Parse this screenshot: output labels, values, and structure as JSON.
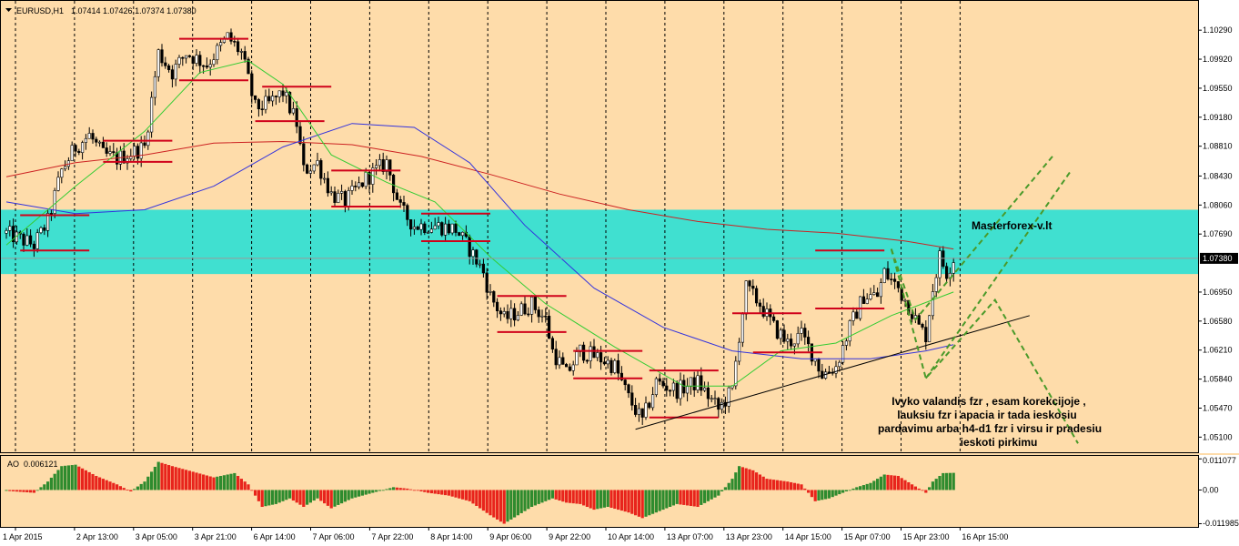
{
  "header": {
    "symbol": "EURUSD,H1",
    "ohlc": "1.07414 1.07426 1.07374 1.07380"
  },
  "annotations": {
    "brand": "Masterforex-v.lt",
    "comment_lines": [
      "Ivyko valandis fzr , esam korekcijoje ,",
      "lauksiu fzr i apacia ir tada ieskosiu",
      "pardavimu arba h4-d1 fzr i virsu ir pradesiu",
      "ieskoti pirkimu"
    ]
  },
  "colors": {
    "background": "#fedcaa",
    "bull_candle": "#ffffff",
    "bear_candle": "#000000",
    "zone": "#40e0d0",
    "level_lines": "#d0021b",
    "ma_fast": "#33cc33",
    "ma_slow": "#3333dd",
    "ma_long": "#cc2222",
    "ao_up": "#2e8b2e",
    "ao_down": "#e8241c",
    "projection": "#4a9a2a"
  },
  "chart_data": {
    "type": "candlestick",
    "symbol": "EURUSD",
    "timeframe": "H1",
    "price_ticks": [
      "1.10290",
      "1.09920",
      "1.09550",
      "1.09180",
      "1.08810",
      "1.08430",
      "1.08060",
      "1.07690",
      "1.07380",
      "1.06950",
      "1.06580",
      "1.06210",
      "1.05840",
      "1.05470",
      "1.05100"
    ],
    "current_price": "1.07380",
    "ylim": [
      1.0493,
      1.1064
    ],
    "x_ticks": [
      "1 Apr 2015",
      "2 Apr 13:00",
      "3 Apr 05:00",
      "3 Apr 21:00",
      "6 Apr 14:00",
      "7 Apr 06:00",
      "7 Apr 22:00",
      "8 Apr 14:00",
      "9 Apr 06:00",
      "9 Apr 22:00",
      "10 Apr 14:00",
      "13 Apr 07:00",
      "13 Apr 23:00",
      "14 Apr 15:00",
      "15 Apr 07:00",
      "15 Apr 23:00",
      "16 Apr 15:00"
    ],
    "anchors": [
      {
        "b": 0,
        "p": 1.077
      },
      {
        "b": 8,
        "p": 1.0755
      },
      {
        "b": 12,
        "p": 1.0785
      },
      {
        "b": 16,
        "p": 1.085
      },
      {
        "b": 20,
        "p": 1.088
      },
      {
        "b": 24,
        "p": 1.0895
      },
      {
        "b": 28,
        "p": 1.087
      },
      {
        "b": 32,
        "p": 1.0865
      },
      {
        "b": 40,
        "p": 1.088
      },
      {
        "b": 44,
        "p": 1.1
      },
      {
        "b": 48,
        "p": 1.0975
      },
      {
        "b": 52,
        "p": 1.1
      },
      {
        "b": 58,
        "p": 1.0985
      },
      {
        "b": 64,
        "p": 1.102
      },
      {
        "b": 68,
        "p": 1.1
      },
      {
        "b": 72,
        "p": 1.093
      },
      {
        "b": 76,
        "p": 1.0935
      },
      {
        "b": 80,
        "p": 1.095
      },
      {
        "b": 84,
        "p": 1.091
      },
      {
        "b": 86,
        "p": 1.085
      },
      {
        "b": 90,
        "p": 1.086
      },
      {
        "b": 94,
        "p": 1.082
      },
      {
        "b": 98,
        "p": 1.081
      },
      {
        "b": 104,
        "p": 1.084
      },
      {
        "b": 110,
        "p": 1.086
      },
      {
        "b": 114,
        "p": 1.08
      },
      {
        "b": 118,
        "p": 1.078
      },
      {
        "b": 124,
        "p": 1.078
      },
      {
        "b": 130,
        "p": 1.0775
      },
      {
        "b": 134,
        "p": 1.075
      },
      {
        "b": 138,
        "p": 1.072
      },
      {
        "b": 140,
        "p": 1.069
      },
      {
        "b": 144,
        "p": 1.066
      },
      {
        "b": 148,
        "p": 1.067
      },
      {
        "b": 152,
        "p": 1.068
      },
      {
        "b": 156,
        "p": 1.066
      },
      {
        "b": 158,
        "p": 1.062
      },
      {
        "b": 162,
        "p": 1.059
      },
      {
        "b": 166,
        "p": 1.062
      },
      {
        "b": 172,
        "p": 1.061
      },
      {
        "b": 176,
        "p": 1.06
      },
      {
        "b": 180,
        "p": 1.056
      },
      {
        "b": 184,
        "p": 1.053
      },
      {
        "b": 188,
        "p": 1.058
      },
      {
        "b": 194,
        "p": 1.057
      },
      {
        "b": 200,
        "p": 1.058
      },
      {
        "b": 206,
        "p": 1.0545
      },
      {
        "b": 210,
        "p": 1.057
      },
      {
        "b": 212,
        "p": 1.064
      },
      {
        "b": 214,
        "p": 1.07
      },
      {
        "b": 218,
        "p": 1.068
      },
      {
        "b": 222,
        "p": 1.065
      },
      {
        "b": 226,
        "p": 1.063
      },
      {
        "b": 230,
        "p": 1.064
      },
      {
        "b": 234,
        "p": 1.061
      },
      {
        "b": 236,
        "p": 1.059
      },
      {
        "b": 240,
        "p": 1.06
      },
      {
        "b": 244,
        "p": 1.065
      },
      {
        "b": 248,
        "p": 1.069
      },
      {
        "b": 252,
        "p": 1.069
      },
      {
        "b": 254,
        "p": 1.072
      },
      {
        "b": 258,
        "p": 1.07
      },
      {
        "b": 262,
        "p": 1.067
      },
      {
        "b": 264,
        "p": 1.065
      },
      {
        "b": 266,
        "p": 1.064
      },
      {
        "b": 268,
        "p": 1.07
      },
      {
        "b": 270,
        "p": 1.074
      },
      {
        "b": 272,
        "p": 1.072
      },
      {
        "b": 274,
        "p": 1.0738
      }
    ],
    "ma_fast": [
      [
        0,
        1.0755
      ],
      [
        20,
        1.083
      ],
      [
        40,
        1.09
      ],
      [
        56,
        1.0975
      ],
      [
        70,
        1.099
      ],
      [
        80,
        1.096
      ],
      [
        94,
        1.087
      ],
      [
        110,
        1.0835
      ],
      [
        124,
        1.081
      ],
      [
        140,
        1.074
      ],
      [
        156,
        1.068
      ],
      [
        176,
        1.0625
      ],
      [
        196,
        1.0575
      ],
      [
        210,
        1.0575
      ],
      [
        224,
        1.062
      ],
      [
        240,
        1.063
      ],
      [
        256,
        1.0665
      ],
      [
        274,
        1.0695
      ]
    ],
    "ma_slow": [
      [
        0,
        1.081
      ],
      [
        20,
        1.0795
      ],
      [
        40,
        1.08
      ],
      [
        60,
        1.083
      ],
      [
        80,
        1.088
      ],
      [
        100,
        1.091
      ],
      [
        118,
        1.0905
      ],
      [
        134,
        1.086
      ],
      [
        150,
        1.078
      ],
      [
        170,
        1.07
      ],
      [
        190,
        1.065
      ],
      [
        210,
        1.062
      ],
      [
        230,
        1.061
      ],
      [
        250,
        1.061
      ],
      [
        266,
        1.062
      ],
      [
        274,
        1.0628
      ]
    ],
    "ma_long": [
      [
        0,
        1.0842
      ],
      [
        20,
        1.086
      ],
      [
        40,
        1.087
      ],
      [
        60,
        1.0885
      ],
      [
        80,
        1.0887
      ],
      [
        100,
        1.0883
      ],
      [
        120,
        1.0868
      ],
      [
        140,
        1.0845
      ],
      [
        160,
        1.082
      ],
      [
        180,
        1.08
      ],
      [
        200,
        1.0785
      ],
      [
        220,
        1.0775
      ],
      [
        240,
        1.077
      ],
      [
        260,
        1.076
      ],
      [
        274,
        1.075
      ]
    ],
    "zone": [
      1.0718,
      1.08
    ],
    "levels": [
      {
        "b0": 4,
        "b1": 24,
        "p": 1.0748
      },
      {
        "b0": 4,
        "b1": 24,
        "p": 1.0793
      },
      {
        "b0": 28,
        "b1": 48,
        "p": 1.0888
      },
      {
        "b0": 28,
        "b1": 48,
        "p": 1.0861
      },
      {
        "b0": 50,
        "b1": 70,
        "p": 1.1018
      },
      {
        "b0": 50,
        "b1": 70,
        "p": 1.0965
      },
      {
        "b0": 74,
        "b1": 94,
        "p": 1.0957
      },
      {
        "b0": 72,
        "b1": 92,
        "p": 1.0913
      },
      {
        "b0": 94,
        "b1": 114,
        "p": 1.085
      },
      {
        "b0": 94,
        "b1": 114,
        "p": 1.0804
      },
      {
        "b0": 120,
        "b1": 140,
        "p": 1.0795
      },
      {
        "b0": 120,
        "b1": 140,
        "p": 1.076
      },
      {
        "b0": 142,
        "b1": 162,
        "p": 1.069
      },
      {
        "b0": 142,
        "b1": 162,
        "p": 1.0644
      },
      {
        "b0": 164,
        "b1": 184,
        "p": 1.062
      },
      {
        "b0": 164,
        "b1": 184,
        "p": 1.0585
      },
      {
        "b0": 186,
        "b1": 206,
        "p": 1.0595
      },
      {
        "b0": 186,
        "b1": 206,
        "p": 1.0535
      },
      {
        "b0": 210,
        "b1": 230,
        "p": 1.0668
      },
      {
        "b0": 216,
        "b1": 236,
        "p": 1.0618
      },
      {
        "b0": 234,
        "b1": 254,
        "p": 1.0748
      },
      {
        "b0": 234,
        "b1": 254,
        "p": 1.0674
      }
    ],
    "trendline": {
      "b0": 182,
      "p0": 1.052,
      "b1": 296,
      "p1": 1.0665
    },
    "projections": [
      [
        [
          256,
          1.075
        ],
        [
          263,
          1.066
        ],
        [
          303,
          1.087
        ]
      ],
      [
        [
          256,
          1.075
        ],
        [
          266,
          1.0585
        ],
        [
          286,
          1.0685
        ],
        [
          310,
          1.0502
        ]
      ],
      [
        [
          266,
          1.0585
        ],
        [
          308,
          1.085
        ]
      ]
    ],
    "ao": {
      "label": "AO",
      "value": "0.006121",
      "ticks": [
        "0.011077",
        "0.00",
        "-0.011985"
      ],
      "ylim": [
        -0.0128,
        0.0118
      ],
      "anchors": [
        [
          0,
          -0.0003
        ],
        [
          8,
          -0.001
        ],
        [
          12,
          0.003
        ],
        [
          16,
          0.0085
        ],
        [
          20,
          0.009
        ],
        [
          26,
          0.005
        ],
        [
          32,
          0.002
        ],
        [
          36,
          -0.0005
        ],
        [
          40,
          0.003
        ],
        [
          44,
          0.01
        ],
        [
          48,
          0.0085
        ],
        [
          54,
          0.0065
        ],
        [
          60,
          0.0045
        ],
        [
          66,
          0.006
        ],
        [
          70,
          0.002
        ],
        [
          74,
          -0.006
        ],
        [
          78,
          -0.005
        ],
        [
          82,
          -0.003
        ],
        [
          86,
          -0.006
        ],
        [
          90,
          -0.003
        ],
        [
          94,
          -0.0065
        ],
        [
          100,
          -0.003
        ],
        [
          106,
          -0.001
        ],
        [
          112,
          0.001
        ],
        [
          116,
          0.0005
        ],
        [
          122,
          -0.001
        ],
        [
          128,
          -0.002
        ],
        [
          134,
          -0.004
        ],
        [
          140,
          -0.009
        ],
        [
          144,
          -0.012
        ],
        [
          148,
          -0.009
        ],
        [
          152,
          -0.006
        ],
        [
          158,
          -0.003
        ],
        [
          162,
          -0.0045
        ],
        [
          166,
          -0.005
        ],
        [
          170,
          -0.007
        ],
        [
          174,
          -0.006
        ],
        [
          180,
          -0.008
        ],
        [
          184,
          -0.01
        ],
        [
          188,
          -0.008
        ],
        [
          194,
          -0.005
        ],
        [
          200,
          -0.006
        ],
        [
          206,
          -0.002
        ],
        [
          210,
          0.004
        ],
        [
          212,
          0.0085
        ],
        [
          216,
          0.007
        ],
        [
          220,
          0.004
        ],
        [
          226,
          0.003
        ],
        [
          230,
          0.002
        ],
        [
          234,
          -0.004
        ],
        [
          238,
          -0.003
        ],
        [
          242,
          -0.001
        ],
        [
          246,
          0.001
        ],
        [
          250,
          0.0025
        ],
        [
          254,
          0.0055
        ],
        [
          258,
          0.005
        ],
        [
          262,
          0.002
        ],
        [
          266,
          -0.001
        ],
        [
          268,
          0.003
        ],
        [
          271,
          0.006
        ],
        [
          274,
          0.0061
        ]
      ]
    }
  }
}
